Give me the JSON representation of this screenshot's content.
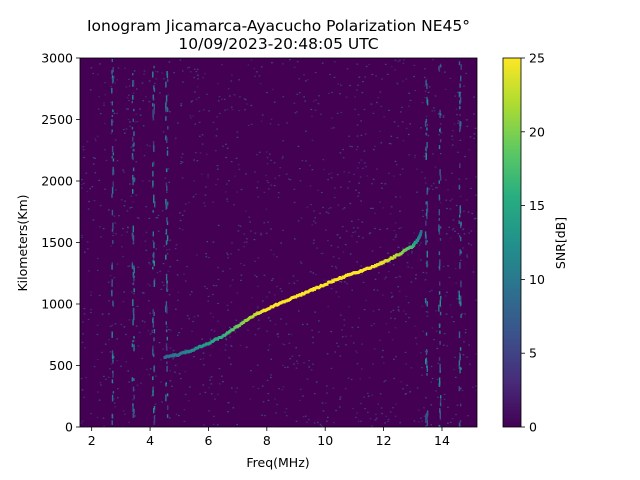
{
  "chart_data": {
    "type": "heatmap",
    "title": "Ionogram Jicamarca-Ayacucho Polarization NE45°",
    "subtitle": "10/09/2023-20:48:05 UTC",
    "xlabel": "Freq(MHz)",
    "ylabel": "Kilometers(Km)",
    "xlim": [
      1.6,
      15.2
    ],
    "ylim": [
      0,
      3000
    ],
    "xticks": [
      2,
      4,
      6,
      8,
      10,
      12,
      14
    ],
    "yticks": [
      0,
      500,
      1000,
      1500,
      2000,
      2500,
      3000
    ],
    "colorbar": {
      "label": "SNR[dB]",
      "range": [
        0,
        25
      ],
      "ticks": [
        0,
        5,
        10,
        15,
        20,
        25
      ],
      "colormap": "viridis"
    },
    "background_snr_db": 2,
    "trace": {
      "name": "F-layer echo trace",
      "freq_mhz": [
        4.5,
        5.0,
        5.5,
        6.0,
        6.5,
        7.0,
        7.5,
        8.0,
        8.5,
        9.0,
        9.5,
        10.0,
        10.5,
        11.0,
        11.5,
        12.0,
        12.5,
        13.0,
        13.2,
        13.3
      ],
      "range_km": [
        570,
        590,
        630,
        680,
        740,
        820,
        900,
        960,
        1010,
        1060,
        1110,
        1160,
        1210,
        1250,
        1290,
        1340,
        1400,
        1470,
        1530,
        1590
      ],
      "snr_db": [
        9,
        10,
        12,
        14,
        16,
        19,
        22,
        25,
        25,
        25,
        25,
        25,
        25,
        25,
        25,
        24,
        22,
        17,
        12,
        9
      ]
    },
    "vertical_interference_mhz": [
      2.7,
      3.4,
      4.1,
      4.55,
      13.45,
      13.9,
      14.6
    ]
  }
}
